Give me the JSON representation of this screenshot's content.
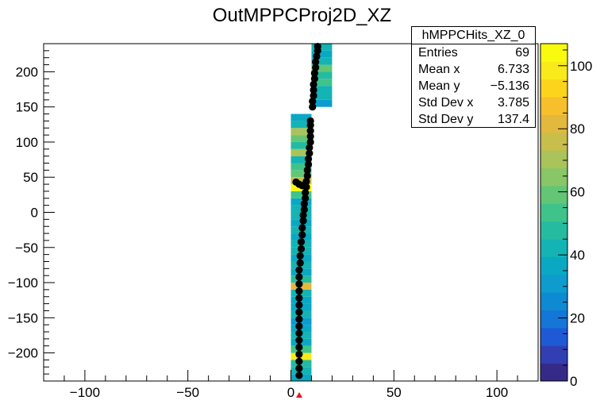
{
  "chart_data": {
    "type": "heatmap",
    "title": "OutMPPCProj2D_XZ",
    "xlim": [
      -120,
      120
    ],
    "ylim": [
      -240,
      240
    ],
    "zlim": [
      0,
      107
    ],
    "x_ticks": [
      -100,
      -50,
      0,
      50,
      100
    ],
    "y_ticks": [
      -200,
      -150,
      -100,
      -50,
      0,
      50,
      100,
      150,
      200
    ],
    "z_ticks": [
      0,
      20,
      40,
      60,
      80,
      100
    ],
    "tick_labels": {
      "x": [
        "−100",
        "−50",
        "0",
        "50",
        "100"
      ],
      "y": [
        "−200",
        "−150",
        "−100",
        "−50",
        "0",
        "50",
        "100",
        "150",
        "200"
      ],
      "z": [
        "0",
        "20",
        "40",
        "60",
        "80",
        "100"
      ]
    },
    "palette": [
      "#352a87",
      "#323fb2",
      "#1f5ad6",
      "#1476d6",
      "#0e8ad2",
      "#0d9ccd",
      "#0aa8c3",
      "#14b3b4",
      "#24bba1",
      "#3fc38a",
      "#63c676",
      "#88c667",
      "#aac35a",
      "#c8be4b",
      "#e2b83d",
      "#f6bf2b",
      "#fdd41c",
      "#f9ea1b",
      "#f9fb0e"
    ],
    "bins": [
      {
        "x": [
          0,
          10
        ],
        "y": [
          -240,
          -230
        ],
        "z": 36
      },
      {
        "x": [
          0,
          10
        ],
        "y": [
          -230,
          -220
        ],
        "z": 45
      },
      {
        "x": [
          0,
          10
        ],
        "y": [
          -220,
          -210
        ],
        "z": 48
      },
      {
        "x": [
          0,
          10
        ],
        "y": [
          -210,
          -200
        ],
        "z": 100
      },
      {
        "x": [
          0,
          10
        ],
        "y": [
          -200,
          -190
        ],
        "z": 52
      },
      {
        "x": [
          0,
          10
        ],
        "y": [
          -190,
          -180
        ],
        "z": 35
      },
      {
        "x": [
          0,
          10
        ],
        "y": [
          -180,
          -170
        ],
        "z": 40
      },
      {
        "x": [
          0,
          10
        ],
        "y": [
          -170,
          -160
        ],
        "z": 38
      },
      {
        "x": [
          0,
          10
        ],
        "y": [
          -160,
          -150
        ],
        "z": 33
      },
      {
        "x": [
          0,
          10
        ],
        "y": [
          -150,
          -140
        ],
        "z": 45
      },
      {
        "x": [
          0,
          10
        ],
        "y": [
          -140,
          -130
        ],
        "z": 38
      },
      {
        "x": [
          0,
          10
        ],
        "y": [
          -130,
          -120
        ],
        "z": 35
      },
      {
        "x": [
          0,
          10
        ],
        "y": [
          -120,
          -110
        ],
        "z": 42
      },
      {
        "x": [
          0,
          10
        ],
        "y": [
          -110,
          -100
        ],
        "z": 82
      },
      {
        "x": [
          0,
          10
        ],
        "y": [
          -100,
          -90
        ],
        "z": 50
      },
      {
        "x": [
          0,
          10
        ],
        "y": [
          -90,
          -80
        ],
        "z": 38
      },
      {
        "x": [
          0,
          10
        ],
        "y": [
          -80,
          -70
        ],
        "z": 42
      },
      {
        "x": [
          0,
          10
        ],
        "y": [
          -70,
          -60
        ],
        "z": 35
      },
      {
        "x": [
          0,
          10
        ],
        "y": [
          -60,
          -50
        ],
        "z": 40
      },
      {
        "x": [
          0,
          10
        ],
        "y": [
          -50,
          -40
        ],
        "z": 45
      },
      {
        "x": [
          0,
          10
        ],
        "y": [
          -40,
          -30
        ],
        "z": 38
      },
      {
        "x": [
          0,
          10
        ],
        "y": [
          -30,
          -20
        ],
        "z": 42
      },
      {
        "x": [
          0,
          10
        ],
        "y": [
          -20,
          -10
        ],
        "z": 36
      },
      {
        "x": [
          0,
          10
        ],
        "y": [
          -10,
          0
        ],
        "z": 40
      },
      {
        "x": [
          0,
          10
        ],
        "y": [
          0,
          10
        ],
        "z": 44
      },
      {
        "x": [
          0,
          10
        ],
        "y": [
          10,
          20
        ],
        "z": 38
      },
      {
        "x": [
          0,
          10
        ],
        "y": [
          20,
          30
        ],
        "z": 55
      },
      {
        "x": [
          0,
          10
        ],
        "y": [
          30,
          40
        ],
        "z": 106
      },
      {
        "x": [
          0,
          10
        ],
        "y": [
          40,
          50
        ],
        "z": 75
      },
      {
        "x": [
          0,
          10
        ],
        "y": [
          50,
          60
        ],
        "z": 58
      },
      {
        "x": [
          0,
          10
        ],
        "y": [
          60,
          70
        ],
        "z": 52
      },
      {
        "x": [
          0,
          10
        ],
        "y": [
          70,
          80
        ],
        "z": 42
      },
      {
        "x": [
          0,
          10
        ],
        "y": [
          80,
          90
        ],
        "z": 72
      },
      {
        "x": [
          0,
          10
        ],
        "y": [
          90,
          100
        ],
        "z": 50
      },
      {
        "x": [
          0,
          10
        ],
        "y": [
          100,
          110
        ],
        "z": 60
      },
      {
        "x": [
          0,
          10
        ],
        "y": [
          110,
          120
        ],
        "z": 72
      },
      {
        "x": [
          0,
          10
        ],
        "y": [
          120,
          130
        ],
        "z": 44
      },
      {
        "x": [
          0,
          10
        ],
        "y": [
          130,
          140
        ],
        "z": 38
      },
      {
        "x": [
          10,
          20
        ],
        "y": [
          150,
          160
        ],
        "z": 30
      },
      {
        "x": [
          10,
          20
        ],
        "y": [
          160,
          170
        ],
        "z": 45
      },
      {
        "x": [
          10,
          20
        ],
        "y": [
          170,
          180
        ],
        "z": 40
      },
      {
        "x": [
          10,
          20
        ],
        "y": [
          180,
          190
        ],
        "z": 55
      },
      {
        "x": [
          10,
          20
        ],
        "y": [
          190,
          200
        ],
        "z": 48
      },
      {
        "x": [
          10,
          20
        ],
        "y": [
          200,
          210
        ],
        "z": 60
      },
      {
        "x": [
          10,
          20
        ],
        "y": [
          210,
          220
        ],
        "z": 42
      },
      {
        "x": [
          10,
          20
        ],
        "y": [
          220,
          230
        ],
        "z": 35
      },
      {
        "x": [
          10,
          20
        ],
        "y": [
          230,
          240
        ],
        "z": 40
      }
    ],
    "hits": [
      {
        "x": 4,
        "y": -232
      },
      {
        "x": 4,
        "y": -222
      },
      {
        "x": 4,
        "y": -212
      },
      {
        "x": 4,
        "y": -202
      },
      {
        "x": 4,
        "y": -192
      },
      {
        "x": 4,
        "y": -182
      },
      {
        "x": 4,
        "y": -172
      },
      {
        "x": 4,
        "y": -162
      },
      {
        "x": 4,
        "y": -152
      },
      {
        "x": 4,
        "y": -142
      },
      {
        "x": 4,
        "y": -132
      },
      {
        "x": 4,
        "y": -122
      },
      {
        "x": 4,
        "y": -112
      },
      {
        "x": 4,
        "y": -102
      },
      {
        "x": 4,
        "y": -92
      },
      {
        "x": 4,
        "y": -82
      },
      {
        "x": 4.5,
        "y": -72
      },
      {
        "x": 4.5,
        "y": -62
      },
      {
        "x": 5,
        "y": -52
      },
      {
        "x": 5,
        "y": -42
      },
      {
        "x": 5.5,
        "y": -32
      },
      {
        "x": 5.5,
        "y": -22
      },
      {
        "x": 6,
        "y": -12
      },
      {
        "x": 6,
        "y": -4
      },
      {
        "x": 6.5,
        "y": 4
      },
      {
        "x": 6.5,
        "y": 12
      },
      {
        "x": 7,
        "y": 20
      },
      {
        "x": 7,
        "y": 28
      },
      {
        "x": 7.5,
        "y": 36
      },
      {
        "x": 7.5,
        "y": 44
      },
      {
        "x": 2.5,
        "y": 43
      },
      {
        "x": 4,
        "y": 40
      },
      {
        "x": 5.5,
        "y": 38
      },
      {
        "x": 8,
        "y": 52
      },
      {
        "x": 8,
        "y": 60
      },
      {
        "x": 8.5,
        "y": 68
      },
      {
        "x": 8.5,
        "y": 76
      },
      {
        "x": 9,
        "y": 84
      },
      {
        "x": 9,
        "y": 92
      },
      {
        "x": 9.5,
        "y": 100
      },
      {
        "x": 9.5,
        "y": 108
      },
      {
        "x": 9.5,
        "y": 116
      },
      {
        "x": 9.5,
        "y": 124
      },
      {
        "x": 9.5,
        "y": 130
      },
      {
        "x": 10.5,
        "y": 150
      },
      {
        "x": 10.5,
        "y": 158
      },
      {
        "x": 11,
        "y": 166
      },
      {
        "x": 11,
        "y": 174
      },
      {
        "x": 11,
        "y": 182
      },
      {
        "x": 11.5,
        "y": 190
      },
      {
        "x": 11.5,
        "y": 198
      },
      {
        "x": 12,
        "y": 206
      },
      {
        "x": 12,
        "y": 214
      },
      {
        "x": 12.5,
        "y": 222
      },
      {
        "x": 13,
        "y": 230
      },
      {
        "x": 13,
        "y": 236
      }
    ]
  },
  "stats": {
    "name": "hMPPCHits_XZ_0",
    "rows": [
      {
        "label": "Entries",
        "value": "69"
      },
      {
        "label": "Mean x",
        "value": "6.733"
      },
      {
        "label": "Mean y",
        "value": "−5.136"
      },
      {
        "label": "Std Dev x",
        "value": "3.785"
      },
      {
        "label": "Std Dev y",
        "value": "137.4"
      }
    ]
  }
}
